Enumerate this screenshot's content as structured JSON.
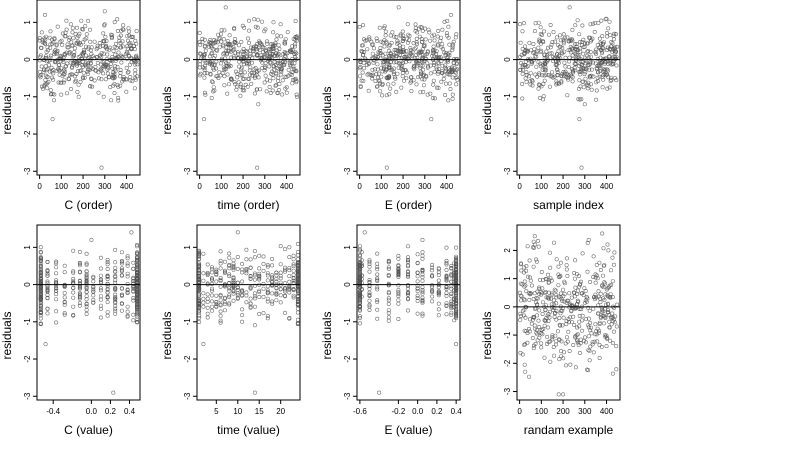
{
  "chart_data": [
    {
      "type": "scatter",
      "xlabel": "C (order)",
      "ylabel": "residuals",
      "xlim": [
        -12,
        462
      ],
      "ylim": [
        -3.1,
        1.6
      ],
      "xticks": [
        0,
        100,
        200,
        300,
        400
      ],
      "xtick_labels": [
        "0",
        "100",
        "200",
        "300",
        "400"
      ],
      "yticks": [
        -3,
        -2,
        -1,
        0,
        1
      ],
      "ytick_labels": [
        "-3",
        "-2",
        "-1",
        "0",
        "1"
      ],
      "hline": 0,
      "n_points": 450,
      "points": [
        [
          25,
          1.2
        ],
        [
          60,
          -1.6
        ],
        [
          285,
          -2.9
        ],
        [
          180,
          -1.0
        ],
        [
          300,
          1.3
        ],
        [
          210,
          0.9
        ]
      ]
    },
    {
      "type": "scatter",
      "xlabel": "time (order)",
      "ylabel": "residuals",
      "xlim": [
        -12,
        462
      ],
      "ylim": [
        -3.1,
        1.6
      ],
      "xticks": [
        0,
        100,
        200,
        300,
        400
      ],
      "xtick_labels": [
        "0",
        "100",
        "200",
        "300",
        "400"
      ],
      "yticks": [
        -3,
        -2,
        -1,
        0,
        1
      ],
      "ytick_labels": [
        "-3",
        "-2",
        "-1",
        "0",
        "1"
      ],
      "hline": 0,
      "n_points": 450,
      "points": [
        [
          20,
          -1.6
        ],
        [
          265,
          -2.9
        ],
        [
          120,
          1.4
        ],
        [
          340,
          1.0
        ],
        [
          270,
          -1.2
        ]
      ]
    },
    {
      "type": "scatter",
      "xlabel": "E (order)",
      "ylabel": "residuals",
      "xlim": [
        -12,
        462
      ],
      "ylim": [
        -3.1,
        1.6
      ],
      "xticks": [
        0,
        100,
        200,
        300,
        400
      ],
      "xtick_labels": [
        "0",
        "100",
        "200",
        "300",
        "400"
      ],
      "yticks": [
        -3,
        -2,
        -1,
        0,
        1
      ],
      "ytick_labels": [
        "-3",
        "-2",
        "-1",
        "0",
        "1"
      ],
      "hline": 0,
      "n_points": 450,
      "points": [
        [
          125,
          -2.9
        ],
        [
          330,
          -1.6
        ],
        [
          180,
          1.4
        ],
        [
          420,
          1.2
        ]
      ]
    },
    {
      "type": "scatter",
      "xlabel": "sample index",
      "ylabel": "residuals",
      "xlim": [
        -12,
        462
      ],
      "ylim": [
        -3.1,
        1.6
      ],
      "xticks": [
        0,
        100,
        200,
        300,
        400
      ],
      "xtick_labels": [
        "0",
        "100",
        "200",
        "300",
        "400"
      ],
      "yticks": [
        -3,
        -2,
        -1,
        0,
        1
      ],
      "ytick_labels": [
        "-3",
        "-2",
        "-1",
        "0",
        "1"
      ],
      "hline": 0,
      "n_points": 450,
      "points": [
        [
          275,
          -1.6
        ],
        [
          285,
          -2.9
        ],
        [
          230,
          1.4
        ],
        [
          300,
          -1.2
        ]
      ]
    },
    {
      "type": "scatter",
      "xlabel": "C (value)",
      "ylabel": "residuals",
      "xlim": [
        -0.57,
        0.51
      ],
      "ylim": [
        -3.1,
        1.6
      ],
      "xticks": [
        -0.4,
        0.0,
        0.2,
        0.4
      ],
      "xtick_labels": [
        "-0.4",
        "0.0",
        "0.2",
        "0.4"
      ],
      "yticks": [
        -3,
        -2,
        -1,
        0,
        1
      ],
      "ytick_labels": [
        "-3",
        "-2",
        "-1",
        "0",
        "1"
      ],
      "hline": 0,
      "n_points": 450,
      "x_levels": [
        -0.53,
        -0.46,
        -0.37,
        -0.28,
        -0.19,
        -0.12,
        -0.05,
        0.02,
        0.1,
        0.17,
        0.25,
        0.32,
        0.38,
        0.44,
        0.48
      ],
      "points": [
        [
          -0.48,
          -1.6
        ],
        [
          0.23,
          -2.9
        ],
        [
          0.42,
          1.4
        ],
        [
          0.0,
          1.2
        ]
      ]
    },
    {
      "type": "scatter",
      "xlabel": "time (value)",
      "ylabel": "residuals",
      "xlim": [
        0.5,
        24.5
      ],
      "ylim": [
        -3.1,
        1.6
      ],
      "xticks": [
        5,
        10,
        15,
        20
      ],
      "xtick_labels": [
        "5",
        "10",
        "15",
        "20"
      ],
      "yticks": [
        -3,
        -2,
        -1,
        0,
        1
      ],
      "ytick_labels": [
        "-3",
        "-2",
        "-1",
        "0",
        "1"
      ],
      "hline": 0,
      "n_points": 450,
      "x_levels": [
        1,
        2,
        3,
        4,
        5,
        6,
        7,
        8,
        9,
        10,
        11,
        12,
        13,
        14,
        15,
        16,
        17,
        18,
        19,
        20,
        21,
        22,
        23,
        24
      ],
      "points": [
        [
          2,
          -1.6
        ],
        [
          14,
          -2.9
        ],
        [
          10,
          1.4
        ],
        [
          22,
          1.0
        ]
      ]
    },
    {
      "type": "scatter",
      "xlabel": "E (value)",
      "ylabel": "residuals",
      "xlim": [
        -0.63,
        0.44
      ],
      "ylim": [
        -3.1,
        1.6
      ],
      "xticks": [
        -0.6,
        -0.2,
        0.0,
        0.2,
        0.4
      ],
      "xtick_labels": [
        "-0.6",
        "-0.2",
        "0.0",
        "0.2",
        "0.4"
      ],
      "yticks": [
        -3,
        -2,
        -1,
        0,
        1
      ],
      "ytick_labels": [
        "-3",
        "-2",
        "-1",
        "0",
        "1"
      ],
      "hline": 0,
      "n_points": 450,
      "x_levels": [
        -0.6,
        -0.58,
        -0.5,
        -0.42,
        -0.3,
        -0.2,
        -0.1,
        0.0,
        0.05,
        0.15,
        0.22,
        0.3,
        0.35,
        0.38,
        0.4
      ],
      "points": [
        [
          -0.4,
          -2.9
        ],
        [
          0.4,
          -1.6
        ],
        [
          -0.55,
          1.4
        ],
        [
          0.05,
          1.2
        ]
      ]
    },
    {
      "type": "scatter",
      "xlabel": "randam example",
      "ylabel": "residuals",
      "xlim": [
        -12,
        462
      ],
      "ylim": [
        -3.3,
        2.9
      ],
      "xticks": [
        0,
        100,
        200,
        300,
        400
      ],
      "xtick_labels": [
        "0",
        "100",
        "200",
        "300",
        "400"
      ],
      "yticks": [
        -3,
        -2,
        -1,
        0,
        1,
        2
      ],
      "ytick_labels": [
        "-3",
        "-2",
        "-1",
        "0",
        "1",
        "2"
      ],
      "hline": 0,
      "n_points": 450,
      "points": [
        [
          180,
          -3.1
        ],
        [
          200,
          -3.1
        ],
        [
          380,
          2.6
        ],
        [
          70,
          2.5
        ]
      ]
    }
  ]
}
